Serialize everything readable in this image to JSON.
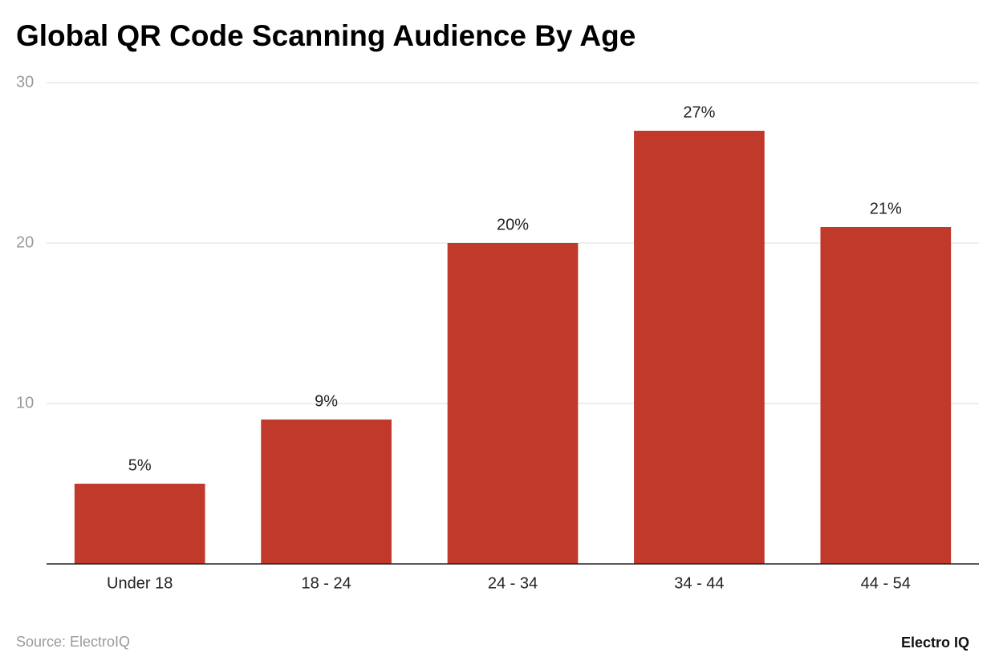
{
  "chart_data": {
    "type": "bar",
    "title": "Global QR Code Scanning Audience By Age",
    "categories": [
      "Under 18",
      "18 - 24",
      "24 - 34",
      "34 - 44",
      "44 - 54"
    ],
    "values": [
      5,
      9,
      20,
      27,
      21
    ],
    "value_labels": [
      "5%",
      "9%",
      "20%",
      "27%",
      "21%"
    ],
    "color": "#c0392b",
    "ylim": [
      0,
      30
    ],
    "yticks": [
      10,
      20,
      30
    ],
    "grid": true,
    "source": "Source: ElectroIQ",
    "brand": "Electro IQ"
  }
}
